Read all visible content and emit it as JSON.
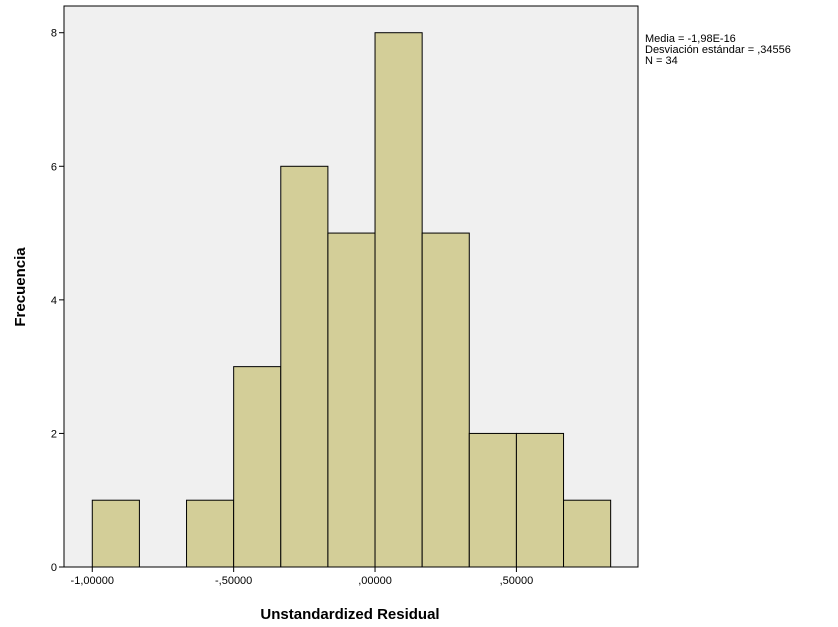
{
  "chart_data": {
    "type": "bar",
    "subtype": "histogram",
    "title": "",
    "xlabel": "Unstandardized Residual",
    "ylabel": "Frecuencia",
    "bins": [
      {
        "x0": -1.0,
        "x1": -0.83333,
        "count": 1
      },
      {
        "x0": -0.83333,
        "x1": -0.66667,
        "count": 0
      },
      {
        "x0": -0.66667,
        "x1": -0.5,
        "count": 1
      },
      {
        "x0": -0.5,
        "x1": -0.33333,
        "count": 3
      },
      {
        "x0": -0.33333,
        "x1": -0.16667,
        "count": 6
      },
      {
        "x0": -0.16667,
        "x1": 0.0,
        "count": 5
      },
      {
        "x0": 0.0,
        "x1": 0.16667,
        "count": 8
      },
      {
        "x0": 0.16667,
        "x1": 0.33333,
        "count": 5
      },
      {
        "x0": 0.33333,
        "x1": 0.5,
        "count": 2
      },
      {
        "x0": 0.5,
        "x1": 0.66667,
        "count": 2
      },
      {
        "x0": 0.66667,
        "x1": 0.83333,
        "count": 1
      }
    ],
    "xlim": [
      -1.1,
      0.93
    ],
    "ylim": [
      0,
      8.4
    ],
    "xticks": [
      {
        "value": -1.0,
        "label": "-1,00000"
      },
      {
        "value": -0.5,
        "label": "-,50000"
      },
      {
        "value": 0.0,
        "label": ",00000"
      },
      {
        "value": 0.5,
        "label": ",50000"
      }
    ],
    "yticks": [
      {
        "value": 0,
        "label": "0"
      },
      {
        "value": 2,
        "label": "2"
      },
      {
        "value": 4,
        "label": "4"
      },
      {
        "value": 6,
        "label": "6"
      },
      {
        "value": 8,
        "label": "8"
      }
    ],
    "grid": false,
    "stats": {
      "mean": "Media = -1,98E-16",
      "std": "Desviación estándar = ,34556",
      "n": "N = 34"
    },
    "colors": {
      "bar_fill": "#D3CE98",
      "bar_stroke": "#000000",
      "plot_background": "#F0F0F0",
      "page_background": "#FFFFFF"
    }
  }
}
